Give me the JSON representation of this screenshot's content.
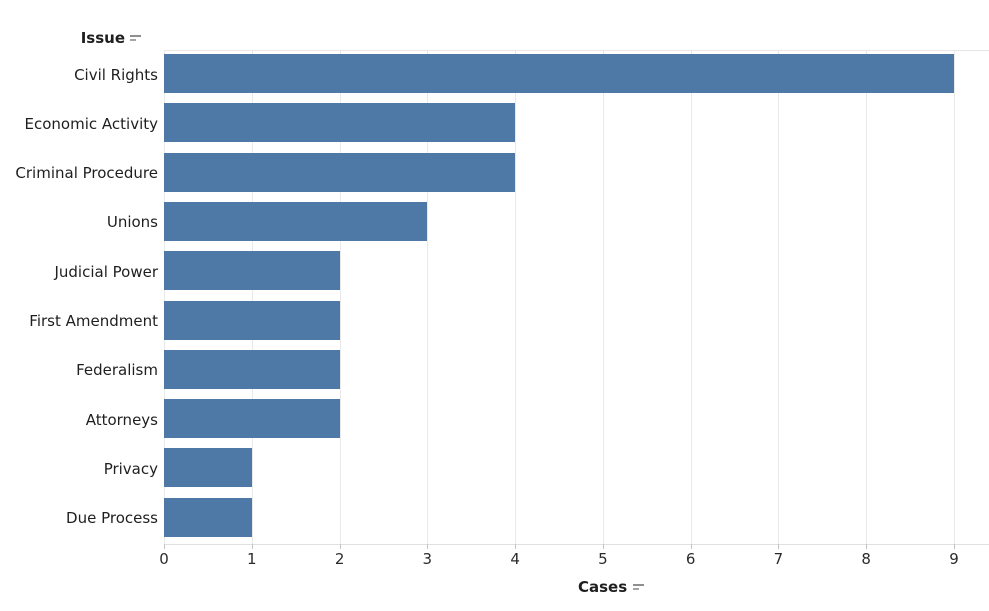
{
  "chart_data": {
    "type": "bar",
    "orientation": "horizontal",
    "title": "",
    "row_axis_label": "Issue",
    "value_axis_label": "Cases",
    "sort": "descending-by-value",
    "legend": "none",
    "grid": "vertical-gridlines-only",
    "categories": [
      "Civil Rights",
      "Economic Activity",
      "Criminal Procedure",
      "Unions",
      "Judicial Power",
      "First Amendment",
      "Federalism",
      "Attorneys",
      "Privacy",
      "Due Process"
    ],
    "values": [
      9,
      4,
      4,
      3,
      2,
      2,
      2,
      2,
      1,
      1
    ],
    "x_ticks": [
      0,
      1,
      2,
      3,
      4,
      5,
      6,
      7,
      8,
      9
    ],
    "xlim": [
      0,
      9.4
    ],
    "bar_color": "#4e79a7",
    "gridline_color": "#e9e9e9",
    "tick_mark_color": "#c2c2c2",
    "text_color": "#2b2b2b",
    "sort_icon_color": "#8f8f8f"
  },
  "icons": {
    "row_axis_sort": "sort-descending-icon",
    "value_axis_sort": "sort-descending-icon"
  }
}
